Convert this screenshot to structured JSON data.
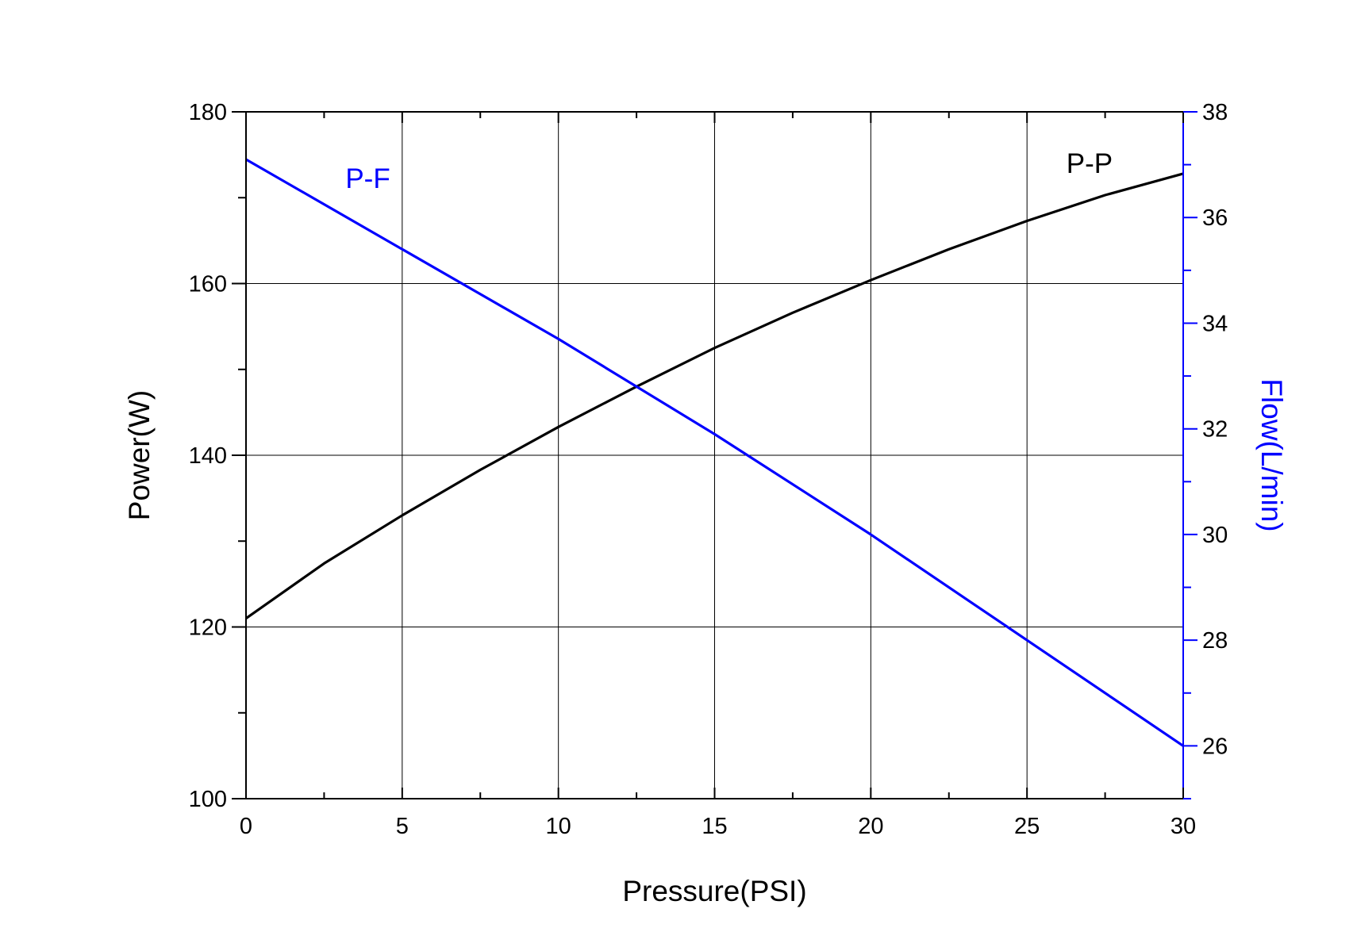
{
  "chart_data": {
    "type": "line",
    "title": "",
    "xlabel": "Pressure(PSI)",
    "ylabel": "Power(W)",
    "y2label": "Flow(L/min)",
    "xlim": [
      0,
      30
    ],
    "ylim": [
      100,
      180
    ],
    "y2lim": [
      25,
      38
    ],
    "xticks": [
      0,
      5,
      10,
      15,
      20,
      25,
      30
    ],
    "xtick_labels": [
      "0",
      "5",
      "10",
      "15",
      "20",
      "25",
      "30"
    ],
    "yticks": [
      100,
      120,
      140,
      160,
      180
    ],
    "ytick_labels": [
      "100",
      "120",
      "140",
      "160",
      "180"
    ],
    "y2ticks": [
      26,
      28,
      30,
      32,
      34,
      36,
      38
    ],
    "y2tick_labels": [
      "26",
      "28",
      "30",
      "32",
      "34",
      "36",
      "38"
    ],
    "grid": true,
    "series": [
      {
        "name": "P-P",
        "axis": "left",
        "color": "#000000",
        "x": [
          0,
          2.5,
          5,
          7.5,
          10,
          12.5,
          15,
          17.5,
          20,
          22.5,
          25,
          27.5,
          30
        ],
        "y": [
          121.0,
          127.4,
          133.0,
          138.3,
          143.3,
          148.0,
          152.5,
          156.6,
          160.4,
          164.0,
          167.3,
          170.3,
          172.8
        ]
      },
      {
        "name": "P-F",
        "axis": "right",
        "color": "#0000ff",
        "x": [
          0,
          5,
          10,
          15,
          20,
          25,
          30
        ],
        "y": [
          37.1,
          35.4,
          33.7,
          31.9,
          30.0,
          28.0,
          26.0
        ]
      }
    ]
  }
}
